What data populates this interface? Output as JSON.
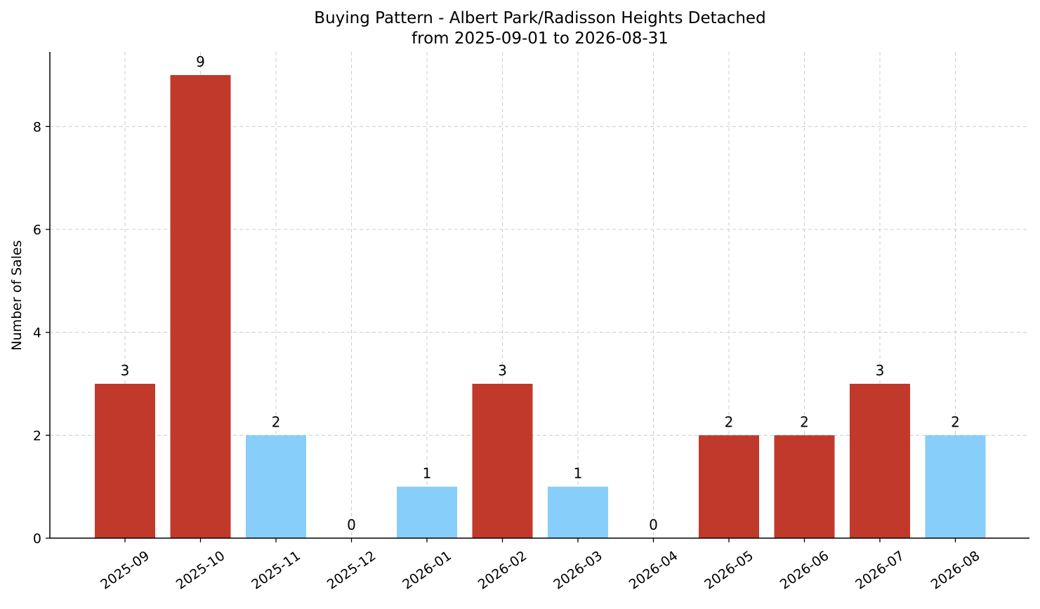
{
  "chart_data": {
    "type": "bar",
    "title_line1": "Buying Pattern - Albert Park/Radisson Heights Detached",
    "title_line2": "from 2025-09-01 to 2026-08-31",
    "xlabel": "",
    "ylabel": "Number of Sales",
    "categories": [
      "2025-09",
      "2025-10",
      "2025-11",
      "2025-12",
      "2026-01",
      "2026-02",
      "2026-03",
      "2026-04",
      "2026-05",
      "2026-06",
      "2026-07",
      "2026-08"
    ],
    "values": [
      3,
      9,
      2,
      0,
      1,
      3,
      1,
      0,
      2,
      2,
      3,
      2
    ],
    "bar_colors": [
      "#c0392b",
      "#c0392b",
      "#87cefa",
      "#c0392b",
      "#87cefa",
      "#c0392b",
      "#87cefa",
      "#c0392b",
      "#c0392b",
      "#c0392b",
      "#c0392b",
      "#87cefa"
    ],
    "yticks": [
      0,
      2,
      4,
      6,
      8
    ],
    "ylim": [
      0,
      9.45
    ],
    "grid": true,
    "legend": "none"
  }
}
